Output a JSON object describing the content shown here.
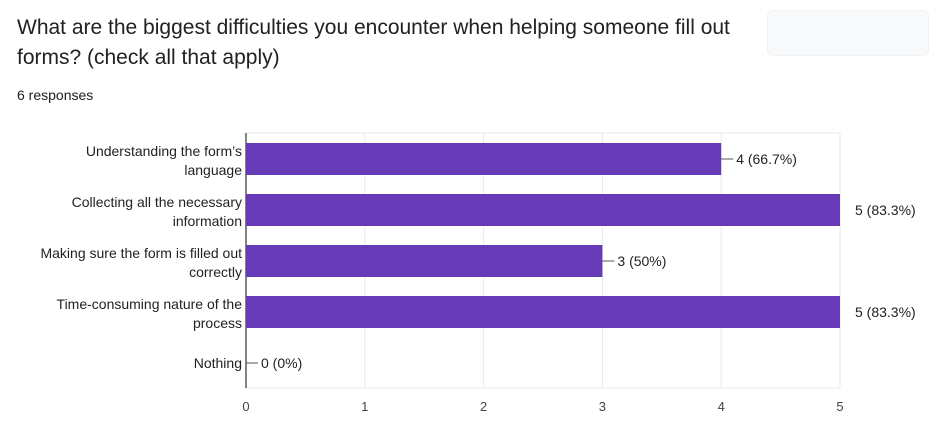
{
  "question": {
    "title": "What are the biggest difficulties you encounter when helping someone fill out forms? (check all that apply)",
    "responses": "6 responses"
  },
  "chart_data": {
    "type": "bar",
    "orientation": "horizontal",
    "categories": [
      [
        "Understanding the form’s",
        "language"
      ],
      [
        "Collecting all the necessary",
        "information"
      ],
      [
        "Making sure the form is filled out",
        "correctly"
      ],
      [
        "Time-consuming nature of the",
        "process"
      ],
      [
        "Nothing"
      ]
    ],
    "values": [
      4,
      5,
      3,
      5,
      0
    ],
    "data_labels": [
      "4 (66.7%)",
      "5 (83.3%)",
      "3 (50%)",
      "5 (83.3%)",
      "0 (0%)"
    ],
    "xlim": [
      0,
      5
    ],
    "x_ticks": [
      "0",
      "1",
      "2",
      "3",
      "4",
      "5"
    ],
    "grid": true,
    "colors": {
      "bar": "#673ab7",
      "grid": "#e9e9e9",
      "axis": "#333333",
      "text": "#222222"
    }
  }
}
